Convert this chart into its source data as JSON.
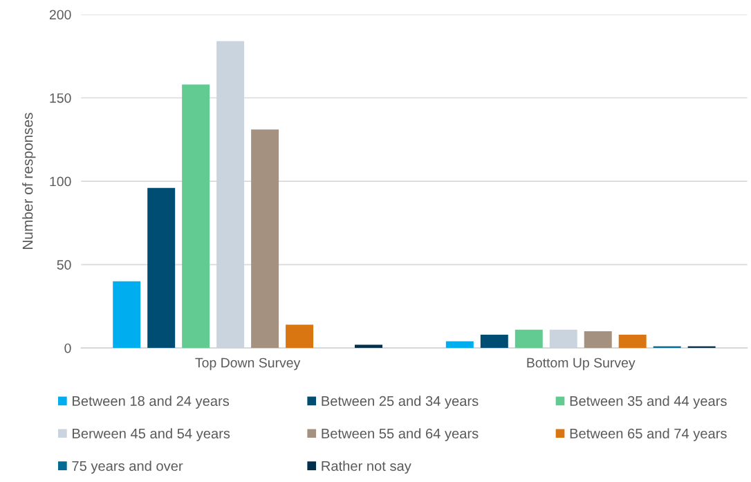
{
  "chart_data": {
    "type": "bar",
    "ylabel": "Number of responses",
    "categories": [
      "Top Down Survey",
      "Bottom Up Survey"
    ],
    "series": [
      {
        "name": "Between 18 and 24 years",
        "color": "#00aeef",
        "values": [
          40,
          4
        ]
      },
      {
        "name": "Between 25 and 34 years",
        "color": "#004d73",
        "values": [
          96,
          8
        ]
      },
      {
        "name": "Between 35 and 44 years",
        "color": "#61cb92",
        "values": [
          158,
          11
        ]
      },
      {
        "name": "Berween 45 and 54 years",
        "color": "#cad4de",
        "values": [
          184,
          11
        ]
      },
      {
        "name": "Between 55 and 64 years",
        "color": "#a59180",
        "values": [
          131,
          10
        ]
      },
      {
        "name": "Between 65 and 74 years",
        "color": "#d97612",
        "values": [
          14,
          8
        ]
      },
      {
        "name": "75 years and over",
        "color": "#006b94",
        "values": [
          null,
          1
        ]
      },
      {
        "name": "Rather not say",
        "color": "#05304b",
        "values": [
          2,
          1
        ]
      }
    ],
    "ylim": [
      0,
      200
    ],
    "yticks": [
      0,
      50,
      100,
      150,
      200
    ],
    "grid": "y",
    "legend": "bottom"
  }
}
